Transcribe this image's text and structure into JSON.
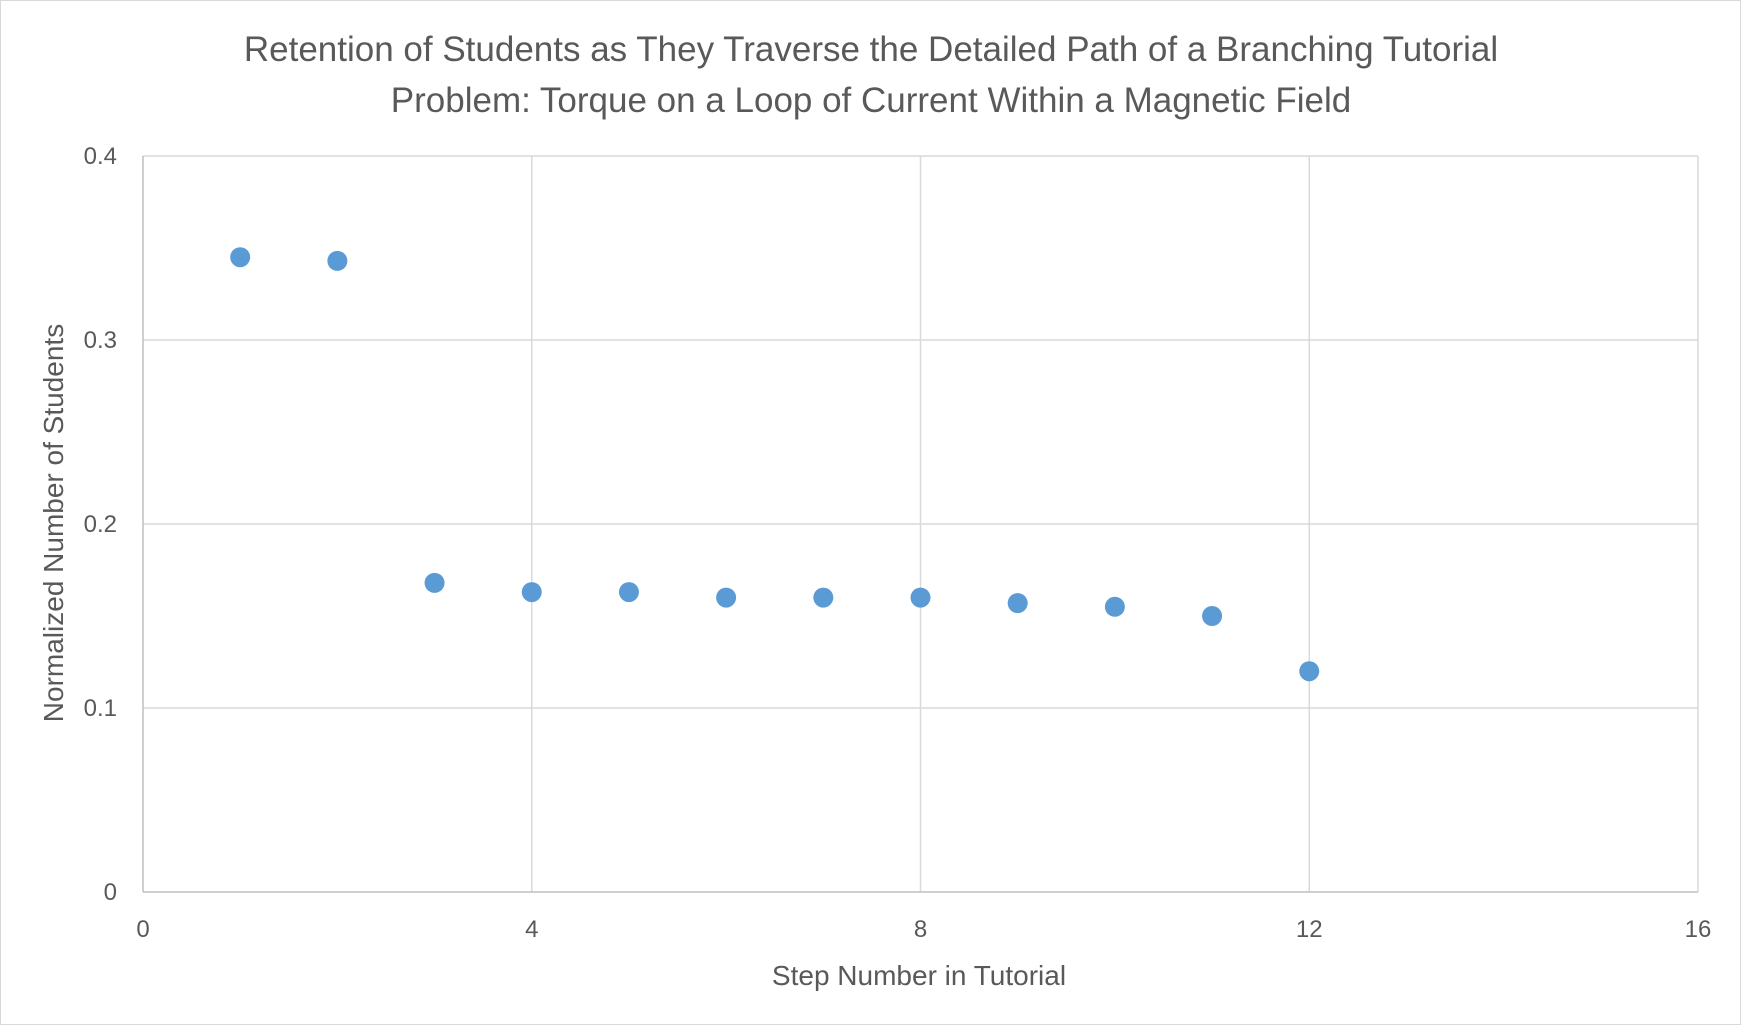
{
  "chart_data": {
    "type": "scatter",
    "title_lines": [
      "Retention of Students as They Traverse the Detailed Path of a Branching Tutorial",
      "Problem: Torque on a Loop of Current Within a Magnetic Field"
    ],
    "xlabel": "Step Number in Tutorial",
    "ylabel": "Normalized Number of Students",
    "xlim": [
      0,
      16
    ],
    "ylim": [
      0,
      0.4
    ],
    "xticks": [
      0,
      4,
      8,
      12,
      16
    ],
    "yticks": [
      0,
      0.1,
      0.2,
      0.3,
      0.4
    ],
    "xtick_labels": [
      "0",
      "4",
      "8",
      "12",
      "16"
    ],
    "ytick_labels": [
      "0",
      "0.1",
      "0.2",
      "0.3",
      "0.4"
    ],
    "grid": true,
    "legend": "none",
    "marker_color": "#5b9bd5",
    "points": [
      {
        "x": 1,
        "y": 0.345
      },
      {
        "x": 2,
        "y": 0.343
      },
      {
        "x": 3,
        "y": 0.168
      },
      {
        "x": 4,
        "y": 0.163
      },
      {
        "x": 5,
        "y": 0.163
      },
      {
        "x": 6,
        "y": 0.16
      },
      {
        "x": 7,
        "y": 0.16
      },
      {
        "x": 8,
        "y": 0.16
      },
      {
        "x": 9,
        "y": 0.157
      },
      {
        "x": 10,
        "y": 0.155
      },
      {
        "x": 11,
        "y": 0.15
      },
      {
        "x": 12,
        "y": 0.12
      }
    ]
  }
}
